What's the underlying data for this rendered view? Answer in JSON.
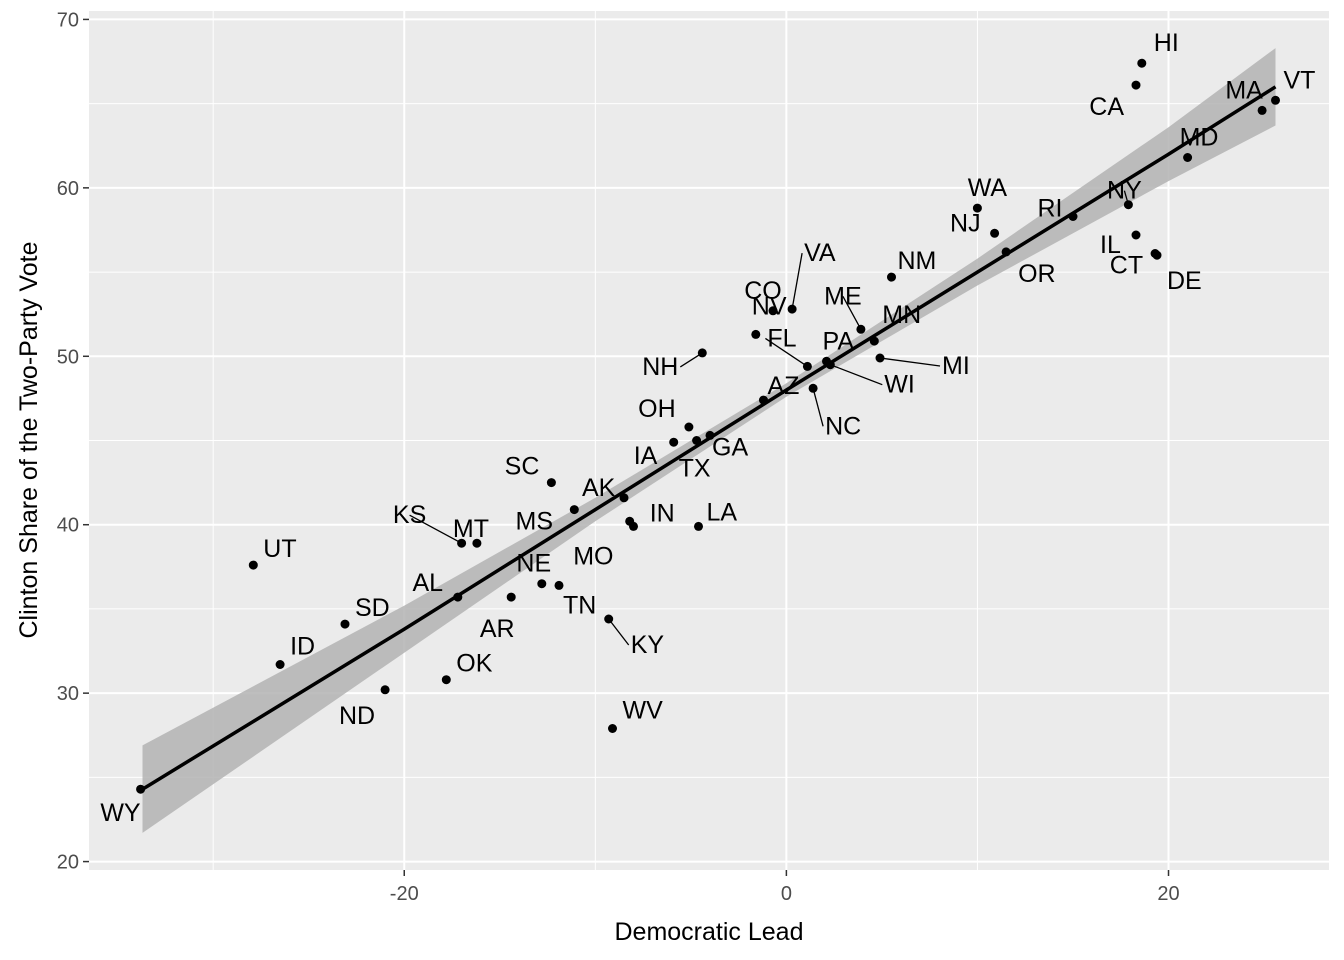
{
  "chart_data": {
    "type": "scatter",
    "title": "",
    "xlabel": "Democratic Lead",
    "ylabel": "Clinton Share of the Two-Party Vote",
    "xlim": [
      -36.5,
      28.4
    ],
    "ylim": [
      19.5,
      70.5
    ],
    "xticks": [
      -20,
      0,
      20
    ],
    "yticks": [
      20,
      30,
      40,
      50,
      60,
      70
    ],
    "grid": true,
    "background": "#ebebeb",
    "point_color": "#000000",
    "fit": {
      "method": "linear",
      "color": "#000000",
      "band_color": "#b3b3b3",
      "x": [
        -33.7,
        -20,
        -10,
        0,
        10,
        20,
        25.6
      ],
      "y": [
        24.3,
        33.8,
        40.9,
        48.0,
        55.0,
        62.0,
        66.0
      ],
      "lower": [
        21.7,
        32.4,
        40.2,
        47.6,
        54.2,
        60.4,
        63.7
      ],
      "upper": [
        26.9,
        35.2,
        41.6,
        48.4,
        55.8,
        63.6,
        68.3
      ]
    },
    "points": [
      {
        "label": "HI",
        "x": 18.6,
        "y": 67.4
      },
      {
        "label": "CA",
        "x": 18.3,
        "y": 66.1
      },
      {
        "label": "VT",
        "x": 25.6,
        "y": 65.2
      },
      {
        "label": "MA",
        "x": 24.9,
        "y": 64.6
      },
      {
        "label": "MD",
        "x": 21.0,
        "y": 61.8
      },
      {
        "label": "NY",
        "x": 17.9,
        "y": 59.0
      },
      {
        "label": "WA",
        "x": 10.0,
        "y": 58.8
      },
      {
        "label": "RI",
        "x": 15.0,
        "y": 58.3
      },
      {
        "label": "NJ",
        "x": 10.9,
        "y": 57.3
      },
      {
        "label": "IL",
        "x": 18.3,
        "y": 57.2
      },
      {
        "label": "OR",
        "x": 11.5,
        "y": 56.2
      },
      {
        "label": "CT",
        "x": 19.3,
        "y": 56.1
      },
      {
        "label": "DE",
        "x": 19.4,
        "y": 56.0
      },
      {
        "label": "NM",
        "x": 5.5,
        "y": 54.7
      },
      {
        "label": "VA",
        "x": 0.3,
        "y": 52.8
      },
      {
        "label": "CO",
        "x": -0.7,
        "y": 52.7
      },
      {
        "label": "ME",
        "x": 3.9,
        "y": 51.6
      },
      {
        "label": "NV",
        "x": -1.6,
        "y": 51.3
      },
      {
        "label": "MN",
        "x": 4.6,
        "y": 50.9
      },
      {
        "label": "NH",
        "x": -4.4,
        "y": 50.2
      },
      {
        "label": "MI",
        "x": 4.9,
        "y": 49.9
      },
      {
        "label": "PA",
        "x": 2.1,
        "y": 49.7
      },
      {
        "label": "WI",
        "x": 2.3,
        "y": 49.5
      },
      {
        "label": "FL",
        "x": 1.1,
        "y": 49.4
      },
      {
        "label": "NC",
        "x": 1.4,
        "y": 48.1
      },
      {
        "label": "AZ",
        "x": -1.2,
        "y": 47.4
      },
      {
        "label": "OH",
        "x": -5.1,
        "y": 45.8
      },
      {
        "label": "GA",
        "x": -4.0,
        "y": 45.3
      },
      {
        "label": "IA",
        "x": -5.9,
        "y": 44.9
      },
      {
        "label": "TX",
        "x": -4.7,
        "y": 45.0
      },
      {
        "label": "SC",
        "x": -12.3,
        "y": 42.5
      },
      {
        "label": "AK",
        "x": -8.5,
        "y": 41.6
      },
      {
        "label": "MS",
        "x": -11.1,
        "y": 40.9
      },
      {
        "label": "IN",
        "x": -8.2,
        "y": 40.2
      },
      {
        "label": "MO",
        "x": -8.0,
        "y": 39.9
      },
      {
        "label": "LA",
        "x": -4.6,
        "y": 39.9
      },
      {
        "label": "KS",
        "x": -17.0,
        "y": 38.9
      },
      {
        "label": "MT",
        "x": -16.2,
        "y": 38.9
      },
      {
        "label": "UT",
        "x": -27.9,
        "y": 37.6
      },
      {
        "label": "NE",
        "x": -12.8,
        "y": 36.5
      },
      {
        "label": "TN",
        "x": -11.9,
        "y": 36.4
      },
      {
        "label": "AL",
        "x": -17.2,
        "y": 35.7
      },
      {
        "label": "AR",
        "x": -14.4,
        "y": 35.7
      },
      {
        "label": "KY",
        "x": -9.3,
        "y": 34.4
      },
      {
        "label": "SD",
        "x": -23.1,
        "y": 34.1
      },
      {
        "label": "ID",
        "x": -26.5,
        "y": 31.7
      },
      {
        "label": "OK",
        "x": -17.8,
        "y": 30.8
      },
      {
        "label": "ND",
        "x": -21.0,
        "y": 30.2
      },
      {
        "label": "WV",
        "x": -9.1,
        "y": 27.9
      },
      {
        "label": "WY",
        "x": -33.8,
        "y": 24.3
      }
    ]
  }
}
